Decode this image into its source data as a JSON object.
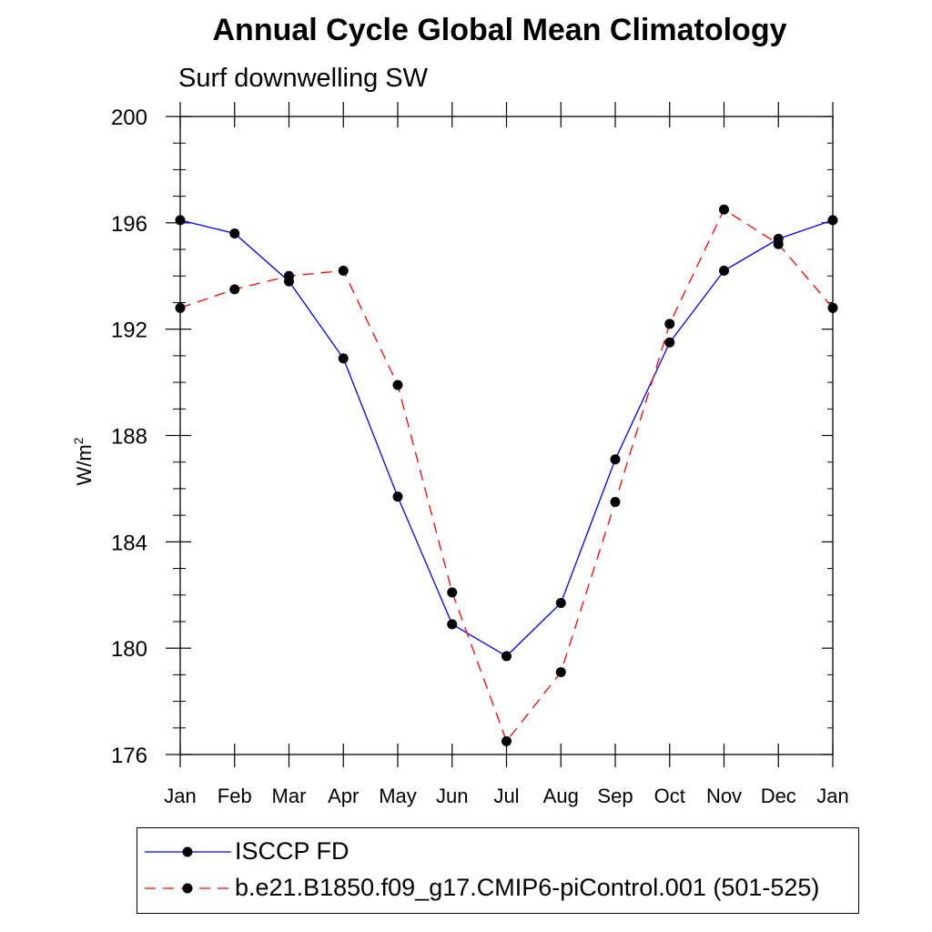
{
  "chart_data": {
    "type": "line",
    "title": "Annual Cycle Global Mean Climatology",
    "subtitle": "Surf downwelling SW",
    "xlabel": "",
    "ylabel": "W/m",
    "ylabel_superscript": "2",
    "ylim": [
      176,
      200
    ],
    "yticks": [
      176,
      180,
      184,
      188,
      192,
      196,
      200
    ],
    "categories": [
      "Jan",
      "Feb",
      "Mar",
      "Apr",
      "May",
      "Jun",
      "Jul",
      "Aug",
      "Sep",
      "Oct",
      "Nov",
      "Dec",
      "Jan"
    ],
    "grid": false,
    "legend_position": "bottom",
    "series": [
      {
        "name": "ISCCP FD",
        "color": "#0000ff",
        "line_style": "solid",
        "marker": "filled-circle",
        "values": [
          196.1,
          195.6,
          193.8,
          190.9,
          185.7,
          180.9,
          179.7,
          181.7,
          187.1,
          191.5,
          194.2,
          195.4,
          196.1
        ]
      },
      {
        "name": "b.e21.B1850.f09_g17.CMIP6-piControl.001 (501-525)",
        "color": "#ff0000",
        "line_style": "dashed",
        "marker": "filled-circle",
        "values": [
          192.8,
          193.5,
          194.0,
          194.2,
          189.9,
          182.1,
          176.5,
          179.1,
          185.5,
          192.2,
          196.5,
          195.2,
          192.8
        ]
      }
    ]
  }
}
